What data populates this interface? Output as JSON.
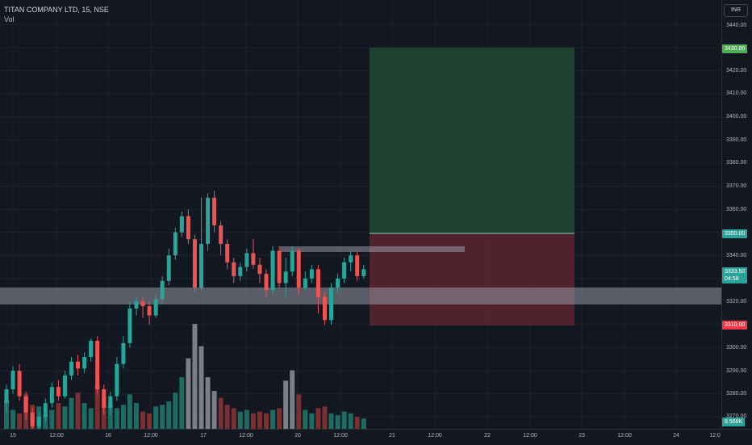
{
  "legend": {
    "symbol": "TITAN COMPANY LTD, 15, NSE",
    "vol": "Vol"
  },
  "currency": "INR",
  "price_axis": [
    "3440.00",
    "3420.00",
    "3410.00",
    "3400.00",
    "3390.00",
    "3380.00",
    "3370.00",
    "3360.00",
    "3340.00",
    "3320.00",
    "3300.00",
    "3290.00",
    "3280.00",
    "3270.00"
  ],
  "tags": {
    "target": "3430.00",
    "entry": "3350.00",
    "last_price": "3333.50",
    "countdown": "04:58",
    "stop": "3310.00",
    "volume": "8.566K"
  },
  "time_axis": [
    "15",
    "12:00",
    "16",
    "12:00",
    "17",
    "12:00",
    "20",
    "12:00",
    "21",
    "12:00",
    "22",
    "12:00",
    "23",
    "12:00",
    "24",
    "12:0"
  ],
  "colors": {
    "up": "#26a69a",
    "down": "#ef5350",
    "bg": "#131722",
    "profit": "#1e4a31",
    "loss": "#5b2530",
    "zone": "#9598a1"
  },
  "chart_data": {
    "type": "candlestick",
    "ylim": [
      3265,
      3445
    ],
    "candles": [
      [
        3276,
        3282,
        3272,
        3284
      ],
      [
        3282,
        3290,
        3280,
        3292
      ],
      [
        3290,
        3279,
        3277,
        3293
      ],
      [
        3279,
        3272,
        3269,
        3281
      ],
      [
        3272,
        3266,
        3263,
        3274
      ],
      [
        3266,
        3270,
        3264,
        3272
      ],
      [
        3270,
        3276,
        3268,
        3278
      ],
      [
        3276,
        3283,
        3274,
        3285
      ],
      [
        3283,
        3279,
        3277,
        3286
      ],
      [
        3279,
        3288,
        3278,
        3290
      ],
      [
        3288,
        3294,
        3286,
        3296
      ],
      [
        3294,
        3291,
        3288,
        3297
      ],
      [
        3291,
        3296,
        3289,
        3298
      ],
      [
        3296,
        3303,
        3294,
        3304
      ],
      [
        3303,
        3282,
        3280,
        3305
      ],
      [
        3282,
        3274,
        3271,
        3284
      ],
      [
        3274,
        3279,
        3271,
        3281
      ],
      [
        3279,
        3293,
        3277,
        3296
      ],
      [
        3293,
        3302,
        3291,
        3305
      ],
      [
        3302,
        3317,
        3300,
        3320
      ],
      [
        3317,
        3320,
        3314,
        3322
      ],
      [
        3320,
        3318,
        3313,
        3322
      ],
      [
        3318,
        3314,
        3310,
        3320
      ],
      [
        3314,
        3321,
        3313,
        3323
      ],
      [
        3321,
        3329,
        3319,
        3331
      ],
      [
        3329,
        3340,
        3327,
        3343
      ],
      [
        3340,
        3350,
        3338,
        3352
      ],
      [
        3350,
        3357,
        3348,
        3359
      ],
      [
        3357,
        3347,
        3345,
        3360
      ],
      [
        3347,
        3326,
        3324,
        3349
      ],
      [
        3326,
        3345,
        3325,
        3365
      ],
      [
        3345,
        3365,
        3342,
        3367
      ],
      [
        3365,
        3353,
        3350,
        3368
      ],
      [
        3353,
        3345,
        3340,
        3355
      ],
      [
        3345,
        3337,
        3334,
        3347
      ],
      [
        3337,
        3331,
        3328,
        3339
      ],
      [
        3331,
        3335,
        3329,
        3337
      ],
      [
        3335,
        3341,
        3333,
        3343
      ],
      [
        3341,
        3336,
        3334,
        3347
      ],
      [
        3336,
        3332,
        3328,
        3339
      ],
      [
        3332,
        3325,
        3322,
        3334
      ],
      [
        3325,
        3342,
        3323,
        3344
      ],
      [
        3342,
        3328,
        3326,
        3344
      ],
      [
        3328,
        3333,
        3322,
        3339
      ],
      [
        3333,
        3342,
        3331,
        3344
      ],
      [
        3342,
        3326,
        3323,
        3343
      ],
      [
        3326,
        3330,
        3325,
        3333
      ],
      [
        3330,
        3334,
        3328,
        3336
      ],
      [
        3334,
        3322,
        3315,
        3336
      ],
      [
        3322,
        3312,
        3310,
        3324
      ],
      [
        3312,
        3326,
        3310,
        3328
      ],
      [
        3326,
        3330,
        3324,
        3332
      ],
      [
        3330,
        3337,
        3328,
        3339
      ],
      [
        3337,
        3340,
        3333,
        3342
      ],
      [
        3340,
        3331,
        3329,
        3342
      ],
      [
        3331,
        3334,
        3330,
        3336
      ]
    ],
    "volume": [
      34,
      22,
      18,
      40,
      28,
      26,
      16,
      22,
      30,
      26,
      36,
      42,
      30,
      24,
      52,
      38,
      30,
      24,
      28,
      40,
      30,
      20,
      18,
      26,
      28,
      32,
      42,
      60,
      82,
      122,
      96,
      60,
      44,
      36,
      28,
      24,
      20,
      22,
      18,
      20,
      18,
      22,
      24,
      56,
      68,
      40,
      22,
      18,
      24,
      26,
      18,
      16,
      20,
      18,
      14,
      12
    ],
    "zones": {
      "resistance": [
        3339.5,
        3342.5
      ],
      "support": [
        3320,
        3324
      ],
      "target": 3430,
      "entry": 3350,
      "stop": 3310
    }
  }
}
